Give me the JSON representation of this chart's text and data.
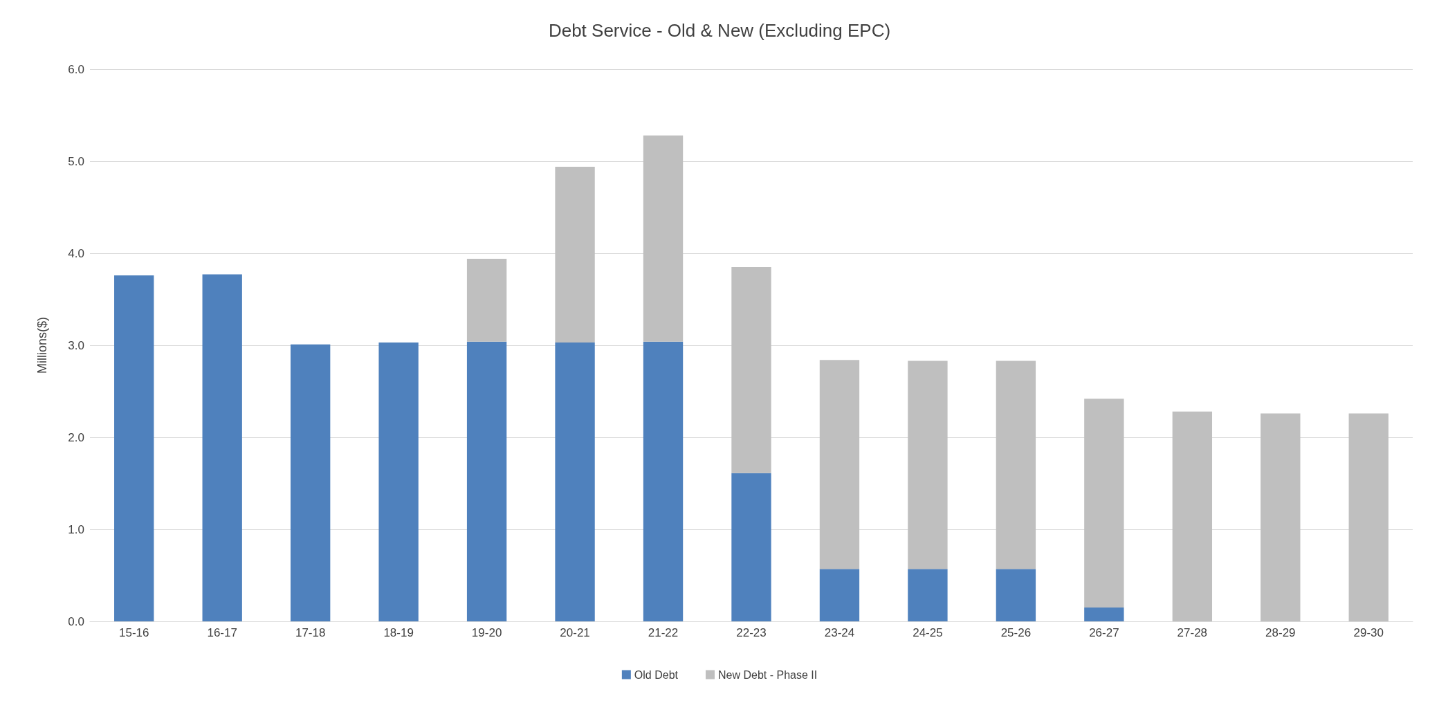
{
  "chart_data": {
    "type": "bar",
    "title": "Debt Service - Old & New (Excluding EPC)",
    "ylabel": "Millions($)",
    "categories": [
      "15-16",
      "16-17",
      "17-18",
      "18-19",
      "19-20",
      "20-21",
      "21-22",
      "22-23",
      "23-24",
      "24-25",
      "25-26",
      "26-27",
      "27-28",
      "28-29",
      "29-30"
    ],
    "series": [
      {
        "name": "Old Debt",
        "color": "#4f81bd",
        "values": [
          3.76,
          3.77,
          3.01,
          3.03,
          3.04,
          3.03,
          3.04,
          1.61,
          0.57,
          0.57,
          0.57,
          0.15,
          null,
          null,
          null
        ]
      },
      {
        "name": "New Debt - Phase II",
        "color": "#bfbfbf",
        "values": [
          null,
          null,
          null,
          null,
          0.9,
          1.91,
          2.24,
          2.24,
          2.27,
          2.26,
          2.26,
          2.27,
          2.28,
          2.26,
          2.26
        ]
      }
    ],
    "stacked": true,
    "ylim": [
      0,
      6
    ],
    "yticks": [
      {
        "value": 0,
        "label": "0.0"
      },
      {
        "value": 1,
        "label": "1.0"
      },
      {
        "value": 2,
        "label": "2.0"
      },
      {
        "value": 3,
        "label": "3.0"
      },
      {
        "value": 4,
        "label": "4.0"
      },
      {
        "value": 5,
        "label": "5.0"
      },
      {
        "value": 6,
        "label": "6.0"
      }
    ],
    "grid": "y",
    "legend": "bottom"
  }
}
